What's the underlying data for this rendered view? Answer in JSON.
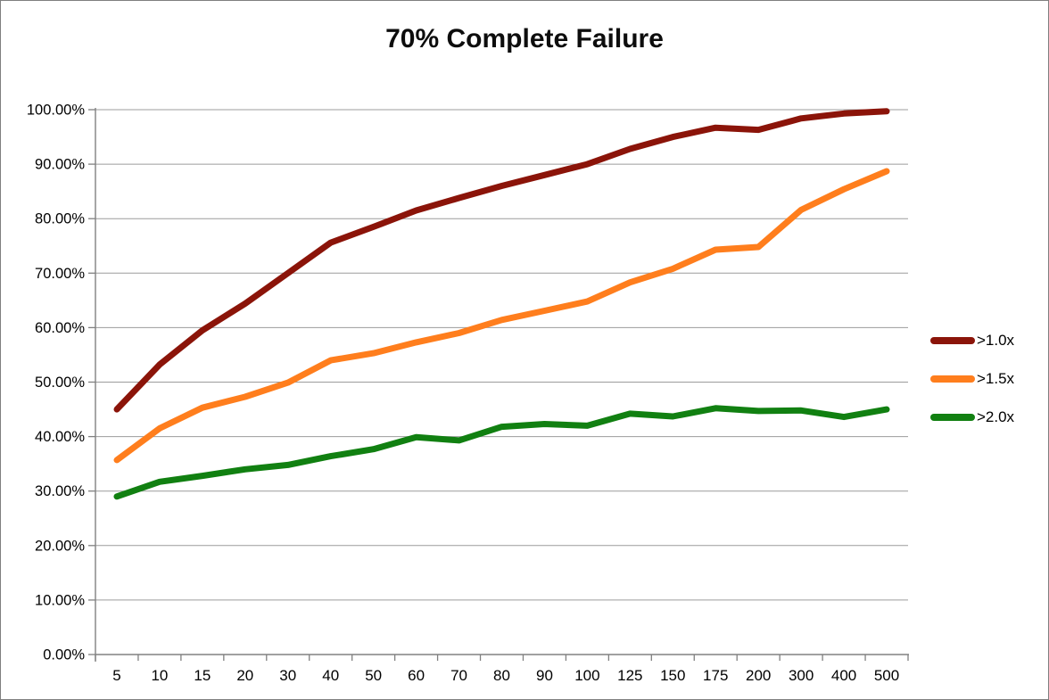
{
  "title": "70% Complete Failure",
  "colors": {
    "background": "#ffffff",
    "gridline": "#9c9c9c",
    "axis": "#808080",
    "text": "#000000",
    "title_text": "#0d0d0d",
    "frame_border": "#7f7f7f"
  },
  "chart_data": {
    "type": "line",
    "title": "70% Complete Failure",
    "categories": [
      "5",
      "10",
      "15",
      "20",
      "30",
      "40",
      "50",
      "60",
      "70",
      "80",
      "90",
      "100",
      "125",
      "150",
      "175",
      "200",
      "300",
      "400",
      "500"
    ],
    "series": [
      {
        "name": ">1.0x",
        "color": "#8b1409",
        "values": [
          45.0,
          53.2,
          59.5,
          64.4,
          70.0,
          75.6,
          78.5,
          81.5,
          83.8,
          86.0,
          88.0,
          90.0,
          92.8,
          95.0,
          96.7,
          96.3,
          98.4,
          99.3,
          99.7
        ]
      },
      {
        "name": ">1.5x",
        "color": "#ff7e1d",
        "values": [
          35.7,
          41.5,
          45.3,
          47.3,
          49.9,
          54.0,
          55.3,
          57.3,
          59.0,
          61.4,
          63.1,
          64.8,
          68.3,
          70.8,
          74.3,
          74.8,
          81.6,
          85.4,
          88.7
        ]
      },
      {
        "name": ">2.0x",
        "color": "#118011",
        "values": [
          29.0,
          31.7,
          32.8,
          34.0,
          34.8,
          36.4,
          37.7,
          39.9,
          39.3,
          41.8,
          42.3,
          42.0,
          44.2,
          43.7,
          45.2,
          44.7,
          44.8,
          43.6,
          45.0
        ]
      }
    ],
    "xlabel": "",
    "ylabel": "",
    "ylim": [
      0,
      100
    ],
    "ytick_step": 10,
    "ytick_labels": [
      "0.00%",
      "10.00%",
      "20.00%",
      "30.00%",
      "40.00%",
      "50.00%",
      "60.00%",
      "70.00%",
      "80.00%",
      "90.00%",
      "100.00%"
    ],
    "grid": true,
    "legend_position": "right"
  }
}
